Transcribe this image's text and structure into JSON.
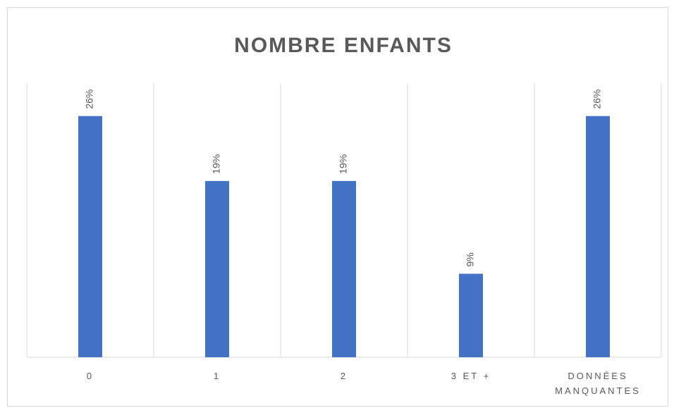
{
  "chart_data": {
    "type": "bar",
    "title": "NOMBRE ENFANTS",
    "categories": [
      "0",
      "1",
      "2",
      "3 ET +",
      "DONNÉES MANQUANTES"
    ],
    "values": [
      26,
      19,
      19,
      9,
      26
    ],
    "value_labels": [
      "26%",
      "19%",
      "19%",
      "9%",
      "26%"
    ],
    "color": "#4472c4"
  }
}
